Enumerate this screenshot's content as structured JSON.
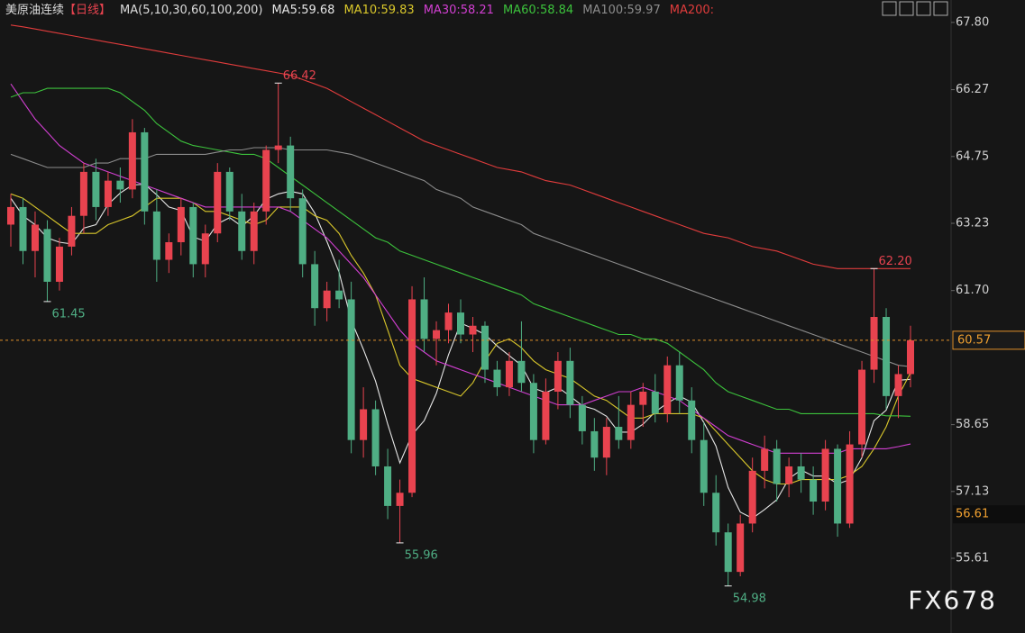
{
  "chart_data": {
    "type": "candlestick",
    "title": "美原油连续",
    "period": "【日线】",
    "indicator": "MA(5,10,30,60,100,200)",
    "up_color": "#e8434f",
    "down_color": "#4fae84",
    "open": [
      63.2,
      63.6,
      62.6,
      63.1,
      61.9,
      62.7,
      63.4,
      64.4,
      63.6,
      64.2,
      64.0,
      65.3,
      63.5,
      62.4,
      62.8,
      63.6,
      62.3,
      63.0,
      64.4,
      63.5,
      62.6,
      63.5,
      64.9,
      65.0,
      63.8,
      62.3,
      61.3,
      61.7,
      61.5,
      58.3,
      59.0,
      57.7,
      56.8,
      57.1,
      61.5,
      60.6,
      60.8,
      61.2,
      60.7,
      60.9,
      59.9,
      59.5,
      60.1,
      59.6,
      58.3,
      59.4,
      60.1,
      59.1,
      58.5,
      57.9,
      58.6,
      58.3,
      59.1,
      59.4,
      58.9,
      60.0,
      59.2,
      58.3,
      57.1,
      56.2,
      55.3,
      56.4,
      57.6,
      58.1,
      57.3,
      57.7,
      57.4,
      56.9,
      58.1,
      56.4,
      58.2,
      59.9,
      61.1,
      59.3,
      59.8
    ],
    "high": [
      63.9,
      63.8,
      63.5,
      63.3,
      62.9,
      63.6,
      64.6,
      64.7,
      64.4,
      64.5,
      65.6,
      65.4,
      64.0,
      63.0,
      63.8,
      63.7,
      63.2,
      64.6,
      64.5,
      63.9,
      63.7,
      65.0,
      66.42,
      65.2,
      64.0,
      62.6,
      61.9,
      62.4,
      61.9,
      59.5,
      59.2,
      58.1,
      57.4,
      61.8,
      62.0,
      61.0,
      61.4,
      61.5,
      61.1,
      61.0,
      60.1,
      60.3,
      61.0,
      59.8,
      59.7,
      60.3,
      60.4,
      59.3,
      58.8,
      58.8,
      59.3,
      59.4,
      59.6,
      59.8,
      60.2,
      60.3,
      59.5,
      58.7,
      57.5,
      56.4,
      56.6,
      57.9,
      58.4,
      58.3,
      57.9,
      58.0,
      57.7,
      58.3,
      58.2,
      58.5,
      60.1,
      62.2,
      61.3,
      60.0,
      60.9
    ],
    "low": [
      62.7,
      62.3,
      62.0,
      61.45,
      61.7,
      62.5,
      63.0,
      63.3,
      63.4,
      63.7,
      63.8,
      63.2,
      61.9,
      62.1,
      62.5,
      62.0,
      62.0,
      62.8,
      63.3,
      62.4,
      62.3,
      63.2,
      64.6,
      63.5,
      62.0,
      60.9,
      61.0,
      61.3,
      58.0,
      57.9,
      57.5,
      56.5,
      55.96,
      57.0,
      60.3,
      60.0,
      60.5,
      60.5,
      60.3,
      59.6,
      59.3,
      59.3,
      59.4,
      58.0,
      58.2,
      59.0,
      58.8,
      58.2,
      57.6,
      57.5,
      58.1,
      58.1,
      58.6,
      58.7,
      58.7,
      58.9,
      58.0,
      56.8,
      55.9,
      54.98,
      55.2,
      56.2,
      57.2,
      56.9,
      57.0,
      57.1,
      56.6,
      56.7,
      56.1,
      56.3,
      57.9,
      59.6,
      59.0,
      58.8,
      59.5
    ],
    "close": [
      63.6,
      62.6,
      63.2,
      61.9,
      62.7,
      63.4,
      64.4,
      63.6,
      64.2,
      64.0,
      65.3,
      63.5,
      62.4,
      62.8,
      63.6,
      62.3,
      63.0,
      64.4,
      63.5,
      62.6,
      63.5,
      64.9,
      65.0,
      63.8,
      62.3,
      61.3,
      61.7,
      61.5,
      58.3,
      59.0,
      57.7,
      56.8,
      57.1,
      61.5,
      60.6,
      60.8,
      61.2,
      60.7,
      60.9,
      59.9,
      59.5,
      60.1,
      59.6,
      58.3,
      59.4,
      60.1,
      59.1,
      58.5,
      57.9,
      58.6,
      58.3,
      59.1,
      59.4,
      58.9,
      60.0,
      59.2,
      58.3,
      57.1,
      56.2,
      55.3,
      56.4,
      57.6,
      58.1,
      57.3,
      57.7,
      57.4,
      56.9,
      58.1,
      56.4,
      58.2,
      59.9,
      61.1,
      59.3,
      59.8,
      60.57
    ],
    "lines": [
      {
        "name": "MA5:59.68",
        "color": "#e6e6e6",
        "values": [
          63.8,
          63.4,
          63.2,
          62.9,
          62.8,
          62.76,
          63.12,
          63.2,
          63.66,
          63.92,
          64.1,
          64.12,
          63.88,
          63.6,
          63.52,
          62.92,
          62.82,
          63.22,
          63.36,
          63.16,
          63.4,
          63.78,
          63.9,
          63.96,
          63.9,
          63.46,
          62.82,
          62.12,
          61.02,
          60.36,
          59.64,
          58.66,
          57.78,
          58.42,
          58.74,
          59.36,
          60.24,
          60.96,
          60.84,
          60.7,
          60.44,
          60.22,
          60.0,
          59.48,
          59.38,
          59.5,
          59.3,
          59.08,
          59.0,
          58.84,
          58.48,
          58.48,
          58.66,
          58.94,
          59.14,
          59.3,
          59.16,
          58.7,
          58.16,
          57.22,
          56.66,
          56.52,
          56.72,
          56.94,
          57.42,
          57.62,
          57.48,
          57.48,
          57.3,
          57.4,
          57.9,
          58.74,
          58.98,
          59.66,
          59.68
        ]
      },
      {
        "name": "MA10:59.83",
        "color": "#d9c72b",
        "values": [
          63.9,
          63.8,
          63.6,
          63.4,
          63.2,
          63.0,
          63.0,
          63.0,
          63.2,
          63.3,
          63.4,
          63.6,
          63.8,
          63.8,
          63.8,
          63.7,
          63.5,
          63.5,
          63.4,
          63.3,
          63.2,
          63.3,
          63.6,
          63.6,
          63.6,
          63.4,
          63.3,
          63.0,
          62.5,
          62.1,
          61.6,
          60.8,
          60.0,
          59.7,
          59.6,
          59.5,
          59.4,
          59.3,
          59.6,
          60.1,
          60.5,
          60.6,
          60.4,
          60.1,
          59.9,
          59.8,
          59.7,
          59.5,
          59.3,
          59.2,
          59.0,
          58.8,
          58.8,
          58.9,
          58.9,
          58.9,
          58.9,
          58.8,
          58.5,
          58.2,
          57.9,
          57.6,
          57.4,
          57.3,
          57.3,
          57.4,
          57.4,
          57.4,
          57.4,
          57.5,
          57.7,
          58.1,
          58.6,
          59.3,
          59.83
        ]
      },
      {
        "name": "MA30:58.21",
        "color": "#d23fd2",
        "values": [
          66.4,
          66.0,
          65.6,
          65.3,
          65.0,
          64.8,
          64.6,
          64.5,
          64.4,
          64.3,
          64.2,
          64.1,
          64.0,
          63.9,
          63.8,
          63.7,
          63.6,
          63.6,
          63.6,
          63.6,
          63.6,
          63.6,
          63.6,
          63.5,
          63.3,
          63.1,
          62.9,
          62.6,
          62.3,
          62.0,
          61.6,
          61.2,
          60.8,
          60.5,
          60.3,
          60.1,
          60.0,
          59.9,
          59.8,
          59.7,
          59.6,
          59.5,
          59.4,
          59.3,
          59.2,
          59.1,
          59.1,
          59.1,
          59.2,
          59.3,
          59.4,
          59.4,
          59.5,
          59.4,
          59.3,
          59.2,
          59.0,
          58.8,
          58.6,
          58.4,
          58.3,
          58.2,
          58.1,
          58.0,
          58.0,
          58.0,
          58.0,
          58.0,
          58.0,
          58.1,
          58.1,
          58.1,
          58.1,
          58.15,
          58.21
        ]
      },
      {
        "name": "MA60:58.84",
        "color": "#3cc23c",
        "values": [
          66.1,
          66.2,
          66.2,
          66.3,
          66.3,
          66.3,
          66.3,
          66.3,
          66.3,
          66.2,
          66.0,
          65.8,
          65.5,
          65.3,
          65.1,
          65.0,
          64.95,
          64.9,
          64.85,
          64.8,
          64.8,
          64.7,
          64.5,
          64.3,
          64.1,
          63.9,
          63.7,
          63.5,
          63.3,
          63.1,
          62.9,
          62.8,
          62.6,
          62.5,
          62.4,
          62.3,
          62.2,
          62.1,
          62.0,
          61.9,
          61.8,
          61.7,
          61.6,
          61.4,
          61.3,
          61.2,
          61.1,
          61.0,
          60.9,
          60.8,
          60.7,
          60.7,
          60.6,
          60.6,
          60.5,
          60.3,
          60.1,
          59.9,
          59.6,
          59.4,
          59.3,
          59.2,
          59.1,
          59.0,
          59.0,
          58.9,
          58.9,
          58.9,
          58.9,
          58.9,
          58.9,
          58.9,
          58.85,
          58.85,
          58.84
        ]
      },
      {
        "name": "MA100:59.97",
        "color": "#8c8c8c",
        "values": [
          64.8,
          64.7,
          64.6,
          64.5,
          64.5,
          64.5,
          64.5,
          64.6,
          64.6,
          64.7,
          64.7,
          64.7,
          64.8,
          64.8,
          64.8,
          64.8,
          64.8,
          64.85,
          64.9,
          64.9,
          64.95,
          64.95,
          64.95,
          64.9,
          64.9,
          64.9,
          64.9,
          64.85,
          64.8,
          64.7,
          64.6,
          64.5,
          64.4,
          64.3,
          64.2,
          64.0,
          63.9,
          63.8,
          63.6,
          63.5,
          63.4,
          63.3,
          63.2,
          63.0,
          62.9,
          62.8,
          62.7,
          62.6,
          62.5,
          62.4,
          62.3,
          62.2,
          62.1,
          62.0,
          61.9,
          61.8,
          61.7,
          61.6,
          61.5,
          61.4,
          61.3,
          61.2,
          61.1,
          61.0,
          60.9,
          60.8,
          60.7,
          60.6,
          60.5,
          60.4,
          60.3,
          60.2,
          60.1,
          60.0,
          59.97
        ]
      },
      {
        "name": "MA200:",
        "color": "#e03c3c",
        "values": [
          67.74,
          67.7,
          67.65,
          67.6,
          67.55,
          67.5,
          67.45,
          67.4,
          67.35,
          67.3,
          67.25,
          67.2,
          67.15,
          67.1,
          67.05,
          67.0,
          66.95,
          66.9,
          66.85,
          66.8,
          66.75,
          66.7,
          66.65,
          66.6,
          66.5,
          66.4,
          66.3,
          66.15,
          66.0,
          65.85,
          65.7,
          65.55,
          65.4,
          65.25,
          65.1,
          65.0,
          64.9,
          64.8,
          64.7,
          64.6,
          64.5,
          64.45,
          64.4,
          64.3,
          64.2,
          64.15,
          64.1,
          64.0,
          63.9,
          63.8,
          63.7,
          63.6,
          63.5,
          63.4,
          63.3,
          63.2,
          63.1,
          63.0,
          62.95,
          62.9,
          62.8,
          62.7,
          62.65,
          62.6,
          62.5,
          62.4,
          62.3,
          62.25,
          62.2,
          62.2,
          62.2,
          62.2,
          62.2,
          62.2,
          62.2
        ]
      }
    ],
    "ylim": [
      53.91,
      68.31
    ],
    "yticks": [
      {
        "value": 67.8,
        "label": "67.80"
      },
      66.27,
      64.75,
      63.23,
      {
        "value": 61.7,
        "label": "61.70"
      },
      58.65,
      57.13,
      55.61
    ],
    "reference_lines": [
      60.57
    ],
    "price_markers": [
      56.61
    ],
    "annotations": [
      66.42,
      61.45,
      55.96,
      54.98,
      {
        "value": 62.2,
        "label": "62.20"
      }
    ],
    "watermark": "FX678"
  }
}
